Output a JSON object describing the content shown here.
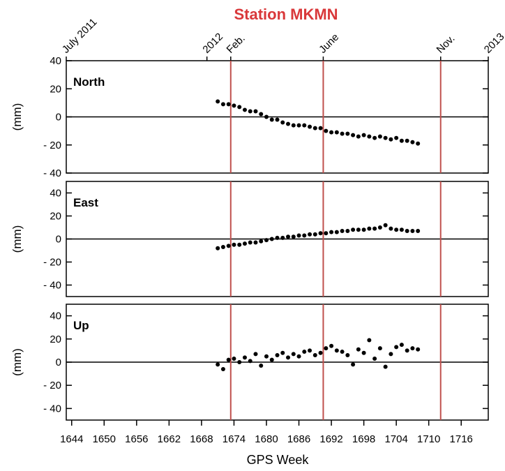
{
  "chart_data": {
    "type": "scatter",
    "title": "Station MKMN",
    "title_color": "#d9383a",
    "xlabel": "GPS Week",
    "xlim": [
      1643,
      1721
    ],
    "xticks": [
      1644,
      1650,
      1656,
      1662,
      1668,
      1674,
      1680,
      1686,
      1692,
      1698,
      1704,
      1710,
      1716
    ],
    "top_ticks": [
      {
        "value": 1643,
        "label": "July 2011"
      },
      {
        "value": 1669,
        "label": "2012"
      },
      {
        "value": 1673.4,
        "label": "Feb."
      },
      {
        "value": 1690.5,
        "label": "June"
      },
      {
        "value": 1712.2,
        "label": "Nov."
      },
      {
        "value": 1721,
        "label": "2013"
      }
    ],
    "event_lines": [
      1673.4,
      1690.5,
      1712.2
    ],
    "event_color": "#c0504d",
    "zero_line": true,
    "color": "#000000",
    "x": [
      1671,
      1672,
      1673,
      1674,
      1675,
      1676,
      1677,
      1678,
      1679,
      1680,
      1681,
      1682,
      1683,
      1684,
      1685,
      1686,
      1687,
      1688,
      1689,
      1690,
      1691,
      1692,
      1693,
      1694,
      1695,
      1696,
      1697,
      1698,
      1699,
      1700,
      1701,
      1702,
      1703,
      1704,
      1705,
      1706,
      1707,
      1708
    ],
    "panels": [
      {
        "label": "North",
        "ylabel": "(mm)",
        "ylim": [
          -40,
          40
        ],
        "yticks": [
          {
            "value": -40,
            "label": "- 40"
          },
          {
            "value": -20,
            "label": "- 20"
          },
          0,
          20,
          40
        ],
        "values": [
          11,
          9,
          9,
          8,
          7,
          5,
          4,
          4,
          2,
          0,
          -2,
          -2,
          -4,
          -5,
          -6,
          -6,
          -6,
          -7,
          -8,
          -8,
          -10,
          -11,
          -11,
          -12,
          -12,
          -13,
          -14,
          -13,
          -14,
          -15,
          -14,
          -15,
          -16,
          -15,
          -17,
          -17,
          -18,
          -19
        ]
      },
      {
        "label": "East",
        "ylabel": "(mm)",
        "ylim": [
          -50,
          50
        ],
        "yticks": [
          {
            "value": -40,
            "label": "- 40"
          },
          {
            "value": -20,
            "label": "- 20"
          },
          0,
          20,
          40
        ],
        "values": [
          -8,
          -7,
          -6,
          -5,
          -5,
          -4,
          -3,
          -3,
          -2,
          -1,
          0,
          1,
          1,
          2,
          2,
          3,
          3,
          4,
          4,
          5,
          5,
          6,
          6,
          7,
          7,
          8,
          8,
          8,
          9,
          9,
          10,
          12,
          9,
          8,
          8,
          7,
          7,
          7
        ]
      },
      {
        "label": "Up",
        "ylabel": "(mm)",
        "ylim": [
          -50,
          50
        ],
        "yticks": [
          {
            "value": -40,
            "label": "- 40"
          },
          {
            "value": -20,
            "label": "- 20"
          },
          0,
          20,
          40
        ],
        "values": [
          -2,
          -6,
          2,
          3,
          0,
          4,
          1,
          7,
          -3,
          5,
          2,
          6,
          8,
          4,
          7,
          5,
          9,
          10,
          6,
          8,
          12,
          14,
          10,
          9,
          6,
          -2,
          11,
          8,
          19,
          3,
          12,
          -4,
          7,
          13,
          15,
          10,
          12,
          11
        ]
      }
    ]
  }
}
